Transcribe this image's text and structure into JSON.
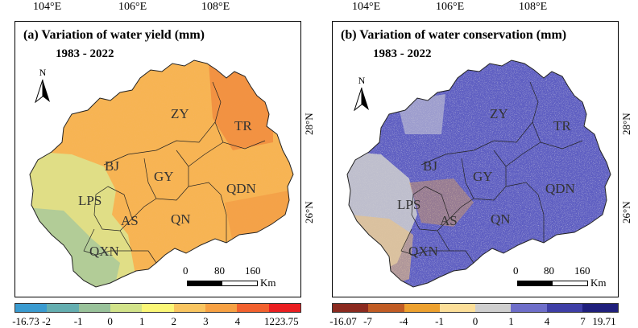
{
  "longitude_labels": [
    "104°E",
    "106°E",
    "108°E"
  ],
  "latitude_labels": [
    "28°N",
    "26°N"
  ],
  "panels": [
    {
      "title": "(a) Variation of water yield (mm)",
      "period": "1983 - 2022",
      "north": "N",
      "scale": {
        "ticks": [
          "0",
          "80",
          "160"
        ],
        "unit": "Km"
      },
      "regions": [
        "ZY",
        "TR",
        "BJ",
        "GY",
        "QDN",
        "LPS",
        "AS",
        "QN",
        "QXN"
      ],
      "legend": {
        "colors": [
          "#3a9bd0",
          "#64aeb0",
          "#99c29a",
          "#d2e38a",
          "#fbf777",
          "#f9c560",
          "#f7a143",
          "#f2612e",
          "#ea1e20"
        ],
        "labels": [
          "-16.73",
          "-2",
          "-1",
          "0",
          "1",
          "2",
          "3",
          "4",
          "12",
          "23.75"
        ]
      }
    },
    {
      "title": "(b) Variation of water conservation (mm)",
      "period": "1983 - 2022",
      "north": "N",
      "scale": {
        "ticks": [
          "0",
          "80",
          "160"
        ],
        "unit": "Km"
      },
      "regions": [
        "ZY",
        "TR",
        "BJ",
        "GY",
        "QDN",
        "LPS",
        "AS",
        "QN",
        "QXN"
      ],
      "legend": {
        "colors": [
          "#8b2a1f",
          "#c15c24",
          "#eda12f",
          "#fcdf99",
          "#cfcfcf",
          "#6e6ec9",
          "#3e3ea6",
          "#1f1f7c"
        ],
        "labels": [
          "-16.07",
          "-7",
          "-4",
          "-1",
          "0",
          "1",
          "4",
          "7",
          "19.71"
        ]
      }
    }
  ]
}
